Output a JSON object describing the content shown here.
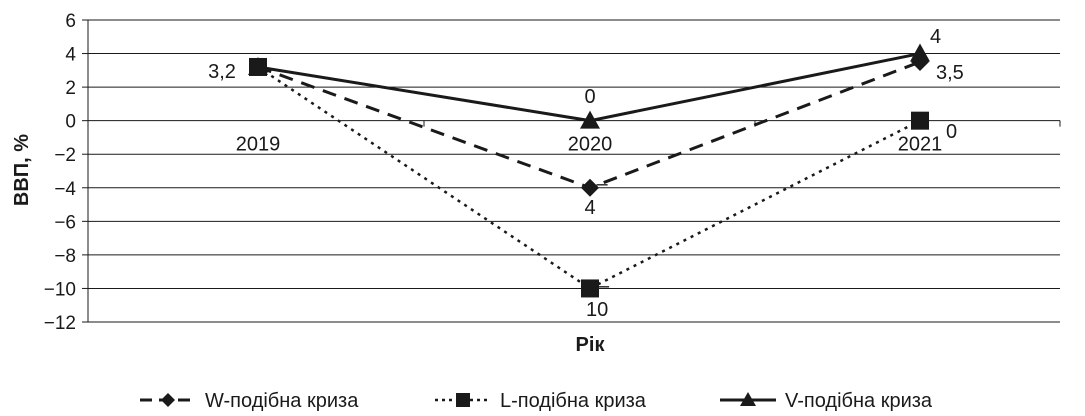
{
  "chart_data": {
    "type": "line",
    "categories": [
      "2019",
      "2020",
      "2021"
    ],
    "xlabel": "Рік",
    "ylabel": "ВВП, %",
    "ylim": [
      -12,
      6
    ],
    "yticks": [
      6,
      4,
      2,
      0,
      -2,
      -4,
      -6,
      -8,
      -10,
      -12
    ],
    "ytick_labels": [
      "6",
      "4",
      "2",
      "0",
      "−2",
      "−4",
      "−6",
      "−8",
      "−10",
      "−12"
    ],
    "grid": true,
    "legend_position": "bottom",
    "series": [
      {
        "name": "W-подібна криза",
        "values": [
          3.2,
          -4,
          3.5
        ],
        "line_style": "dashed",
        "marker": "diamond",
        "data_labels": [
          "3,2",
          "–\n4",
          "3,5"
        ]
      },
      {
        "name": "L-подібна криза",
        "values": [
          3.2,
          -10,
          0
        ],
        "line_style": "dotted",
        "marker": "square",
        "data_labels": [
          "",
          "–\n10",
          "0"
        ]
      },
      {
        "name": "V-подібна криза",
        "values": [
          3.2,
          0,
          4
        ],
        "line_style": "solid",
        "marker": "triangle",
        "data_labels": [
          "",
          "0",
          "4"
        ]
      }
    ],
    "colors": {
      "line": "#1a1a1a",
      "grid": "#1a1a1a"
    }
  }
}
